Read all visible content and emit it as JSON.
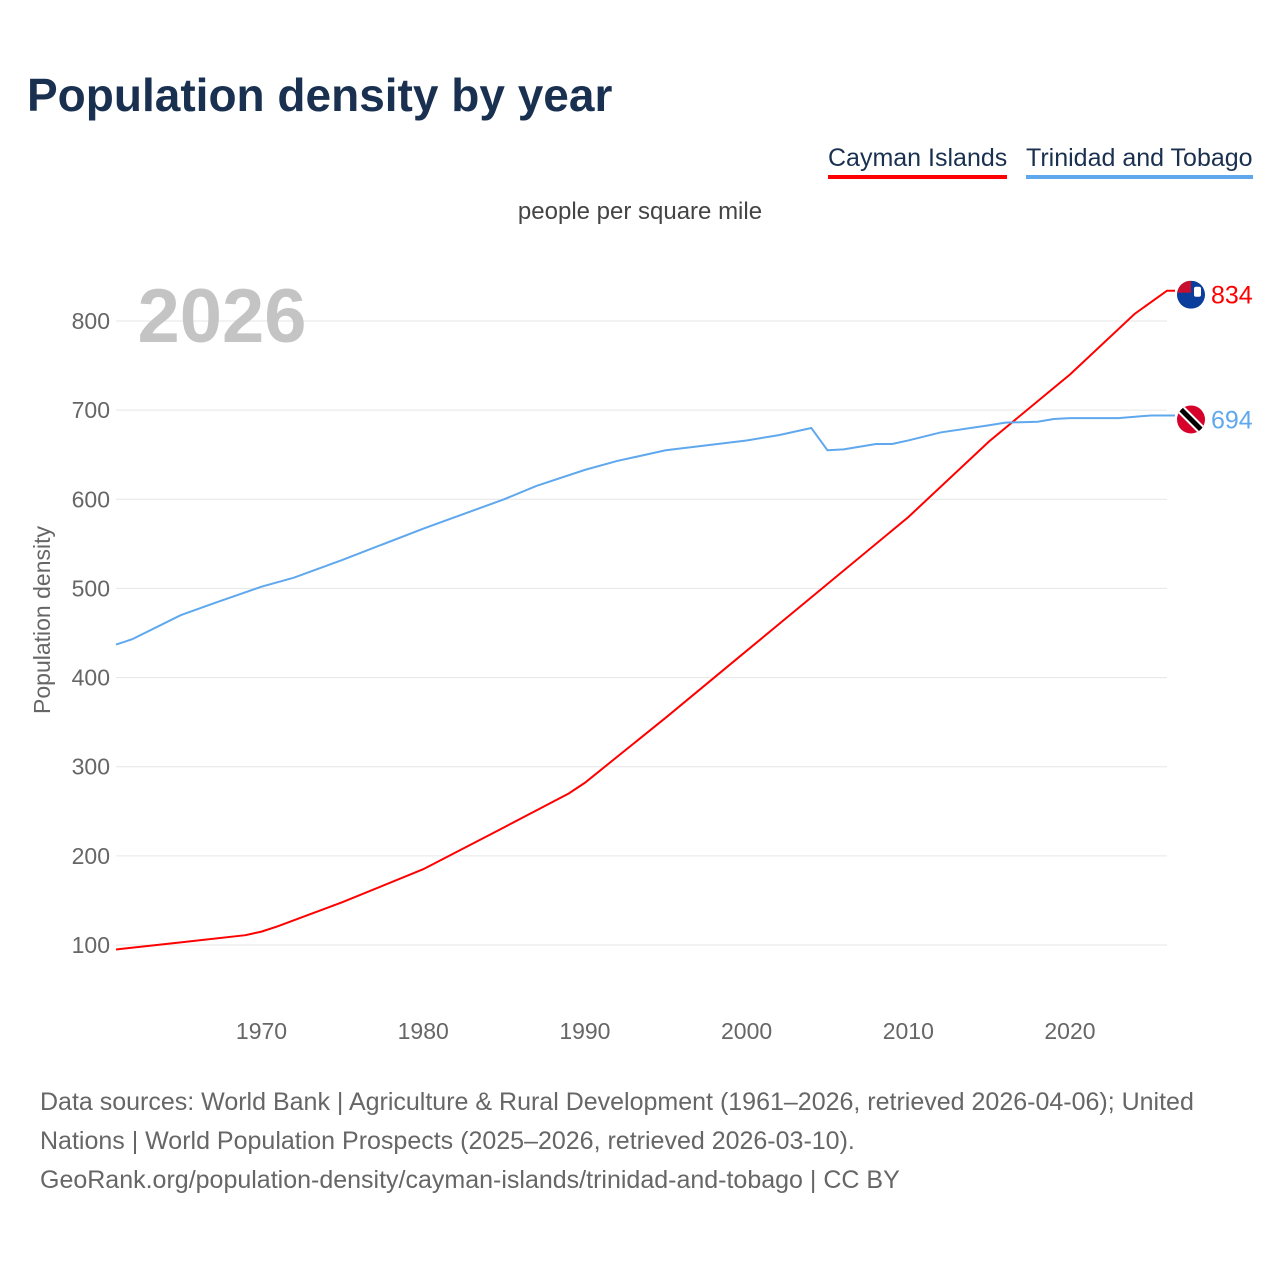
{
  "title": "Population density by year",
  "legend": [
    {
      "label": "Cayman Islands",
      "color": "#ff0000"
    },
    {
      "label": "Trinidad and Tobago",
      "color": "#5fa8ee"
    }
  ],
  "unit": "people per square mile",
  "year_label": "2026",
  "footer": {
    "line1": "Data sources: World Bank | Agriculture & Rural Development (1961–2026, retrieved 2026-04-06); United Nations | World Population Prospects (2025–2026, retrieved 2026-03-10).",
    "line2": "GeoRank.org/population-density/cayman-islands/trinidad-and-tobago | CC BY"
  },
  "chart_data": {
    "type": "line",
    "title": "Population density by year",
    "ylabel": "Population density",
    "xlim": [
      1961,
      2026
    ],
    "ylim": [
      0,
      860
    ],
    "xticks": [
      1970,
      1980,
      1990,
      2000,
      2010,
      2020
    ],
    "yticks": [
      100,
      200,
      300,
      400,
      500,
      600,
      700,
      800
    ],
    "series": [
      {
        "name": "Cayman Islands",
        "color": "#ff0000",
        "end_label": "834",
        "flag": "cayman-islands-flag",
        "x": [
          1961,
          1965,
          1969,
          1970,
          1971,
          1975,
          1980,
          1985,
          1989,
          1990,
          1995,
          1997,
          2000,
          2004,
          2010,
          2015,
          2020,
          2024,
          2026
        ],
        "y": [
          95,
          103,
          111,
          115,
          121,
          148,
          185,
          232,
          270,
          282,
          355,
          385,
          430,
          490,
          580,
          665,
          740,
          808,
          834
        ]
      },
      {
        "name": "Trinidad and Tobago",
        "color": "#5fa8ee",
        "end_label": "694",
        "flag": "trinidad-and-tobago-flag",
        "x": [
          1961,
          1962,
          1965,
          1967,
          1970,
          1972,
          1975,
          1980,
          1985,
          1987,
          1990,
          1992,
          1995,
          2000,
          2002,
          2004,
          2005,
          2006,
          2008,
          2009,
          2010,
          2012,
          2015,
          2016,
          2018,
          2019,
          2020,
          2023,
          2025,
          2026
        ],
        "y": [
          437,
          443,
          470,
          483,
          502,
          512,
          532,
          567,
          600,
          615,
          633,
          643,
          655,
          666,
          672,
          680,
          655,
          656,
          662,
          662,
          666,
          675,
          683,
          686,
          687,
          690,
          691,
          691,
          694,
          694
        ]
      }
    ]
  }
}
